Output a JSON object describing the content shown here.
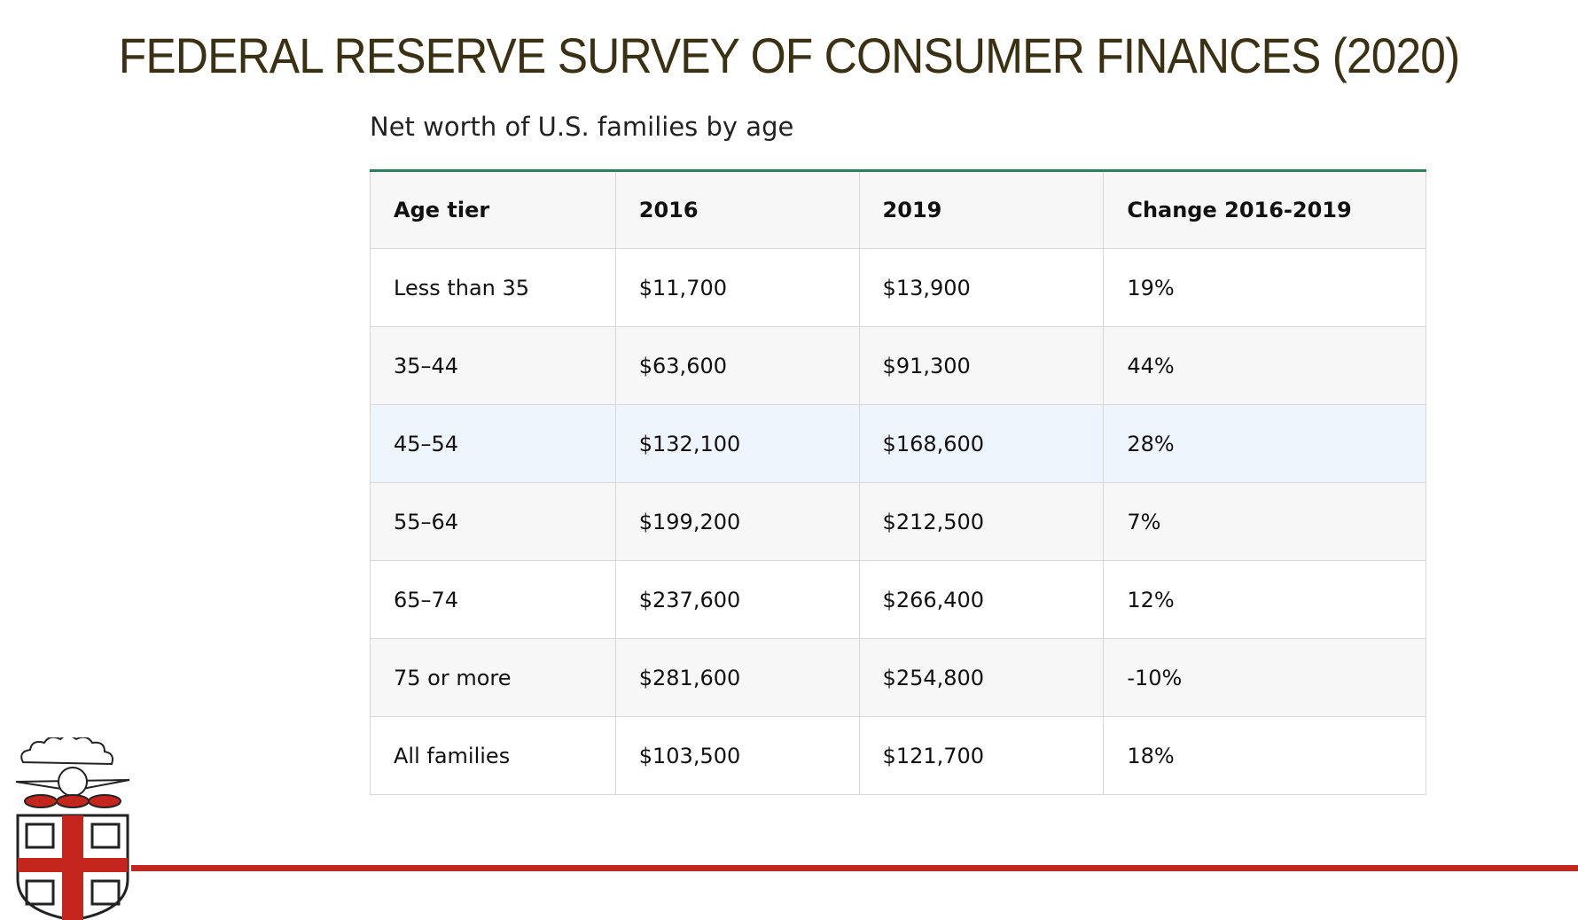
{
  "title": "FEDERAL RESERVE SURVEY OF CONSUMER FINANCES (2020)",
  "subtitle": "Net worth of U.S. families by age",
  "table": {
    "header": [
      "Age tier",
      "2016",
      "2019",
      "Change 2016-2019"
    ],
    "rows": [
      [
        "Less than 35",
        "$11,700",
        "$13,900",
        "19%"
      ],
      [
        "35–44",
        "$63,600",
        "$91,300",
        "44%"
      ],
      [
        "45–54",
        "$132,100",
        "$168,600",
        "28%"
      ],
      [
        "55–64",
        "$199,200",
        "$212,500",
        "7%"
      ],
      [
        "65–74",
        "$237,600",
        "$266,400",
        "12%"
      ],
      [
        "75 or more",
        "$281,600",
        "$254,800",
        "-10%"
      ],
      [
        "All families",
        "$103,500",
        "$121,700",
        "18%"
      ]
    ]
  }
}
